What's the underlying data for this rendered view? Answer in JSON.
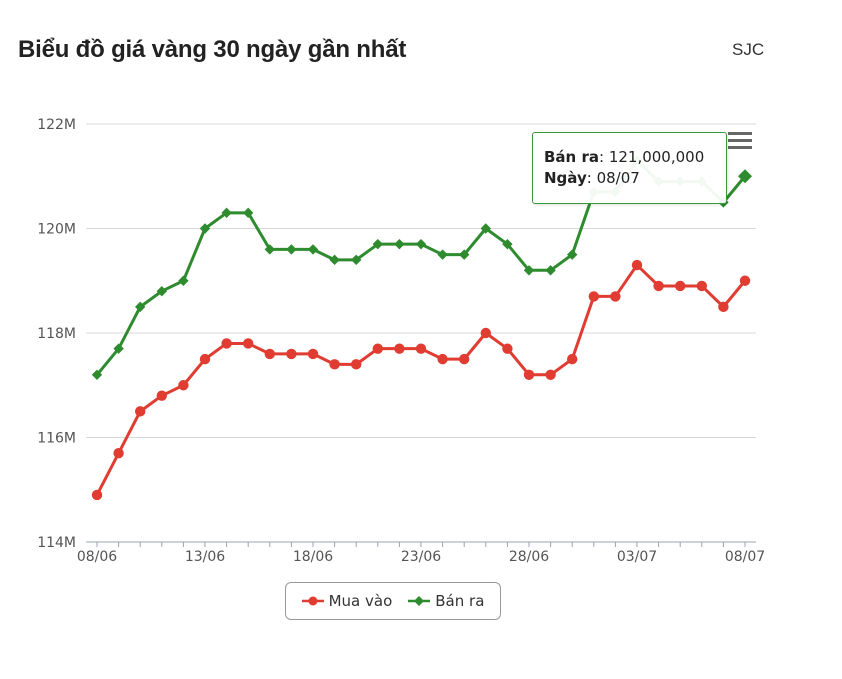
{
  "header": {
    "title": "Biểu đồ giá vàng 30 ngày gần nhất",
    "brand": "SJC"
  },
  "chart_data": {
    "type": "line",
    "y_ticks": [
      "114M",
      "116M",
      "118M",
      "120M",
      "122M"
    ],
    "y_tick_values": [
      114,
      116,
      118,
      120,
      122
    ],
    "ylim": [
      114,
      122
    ],
    "y_unit": "M",
    "x_tick_labels": [
      "08/06",
      "13/06",
      "18/06",
      "23/06",
      "28/06",
      "03/07",
      "08/07"
    ],
    "x_tick_indices": [
      0,
      5,
      10,
      15,
      20,
      25,
      30
    ],
    "point_count": 31,
    "grid": true,
    "legend_position": "bottom-center",
    "series": [
      {
        "name": "Mua vào",
        "color": "#e03c31",
        "marker": "circle",
        "values": [
          114.9,
          115.7,
          116.5,
          116.8,
          117.0,
          117.5,
          117.8,
          117.8,
          117.6,
          117.6,
          117.6,
          117.4,
          117.4,
          117.7,
          117.7,
          117.7,
          117.5,
          117.5,
          118.0,
          117.7,
          117.2,
          117.2,
          117.5,
          118.7,
          118.7,
          119.3,
          118.9,
          118.9,
          118.9,
          118.5,
          119.0
        ]
      },
      {
        "name": "Bán ra",
        "color": "#2e8b2e",
        "marker": "diamond",
        "values": [
          117.2,
          117.7,
          118.5,
          118.8,
          119.0,
          120.0,
          120.3,
          120.3,
          119.6,
          119.6,
          119.6,
          119.4,
          119.4,
          119.7,
          119.7,
          119.7,
          119.5,
          119.5,
          120.0,
          119.7,
          119.2,
          119.2,
          119.5,
          120.7,
          120.7,
          121.3,
          120.9,
          120.9,
          120.9,
          120.5,
          121.0
        ]
      }
    ]
  },
  "tooltip": {
    "series_label": "Bán ra",
    "value": "121,000,000",
    "date_label": "Ngày",
    "date": "08/07",
    "series_color": "#3a9a3a"
  },
  "legend": {
    "items": [
      "Mua vào",
      "Bán ra"
    ]
  },
  "menu": {
    "icon": "hamburger-menu-icon"
  }
}
